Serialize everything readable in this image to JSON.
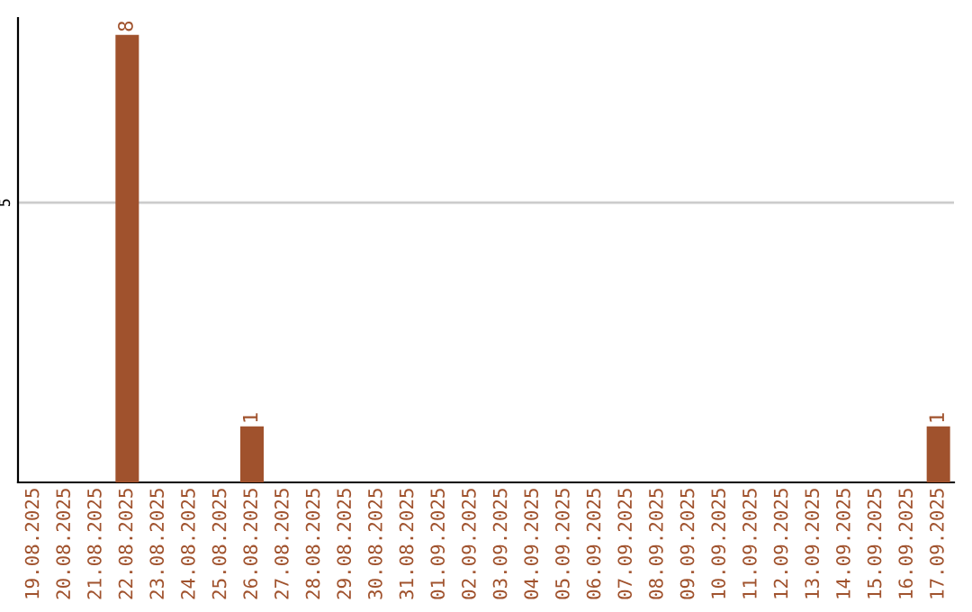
{
  "chart_data": {
    "type": "bar",
    "categories": [
      "19.08.2025",
      "20.08.2025",
      "21.08.2025",
      "22.08.2025",
      "23.08.2025",
      "24.08.2025",
      "25.08.2025",
      "26.08.2025",
      "27.08.2025",
      "28.08.2025",
      "29.08.2025",
      "30.08.2025",
      "31.08.2025",
      "01.09.2025",
      "02.09.2025",
      "03.09.2025",
      "04.09.2025",
      "05.09.2025",
      "06.09.2025",
      "07.09.2025",
      "08.09.2025",
      "09.09.2025",
      "10.09.2025",
      "11.09.2025",
      "12.09.2025",
      "13.09.2025",
      "14.09.2025",
      "15.09.2025",
      "16.09.2025",
      "17.09.2025"
    ],
    "values": [
      0,
      0,
      0,
      8,
      0,
      0,
      0,
      1,
      0,
      0,
      0,
      0,
      0,
      0,
      0,
      0,
      0,
      0,
      0,
      0,
      0,
      0,
      0,
      0,
      0,
      0,
      0,
      0,
      0,
      1
    ],
    "value_labels": [
      null,
      null,
      null,
      "8",
      null,
      null,
      null,
      "1",
      null,
      null,
      null,
      null,
      null,
      null,
      null,
      null,
      null,
      null,
      null,
      null,
      null,
      null,
      null,
      null,
      null,
      null,
      null,
      null,
      null,
      "1"
    ],
    "color": "#a0522d",
    "ylim": [
      0,
      8.3
    ],
    "yticks": [
      5
    ],
    "grid": "y"
  }
}
